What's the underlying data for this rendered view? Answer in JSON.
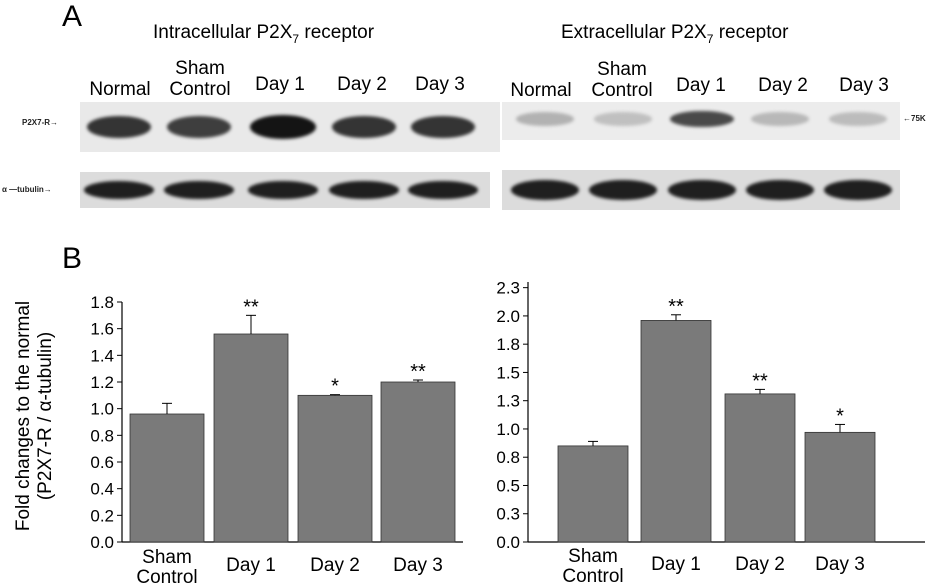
{
  "panel_a_letter": "A",
  "panel_b_letter": "B",
  "blots": {
    "left": {
      "title_main": "Intracellular P2X",
      "title_sub": "7",
      "title_tail": " receptor",
      "lanes": [
        {
          "line1": "Normal",
          "line2": ""
        },
        {
          "line1": "Sham",
          "line2": "Control"
        },
        {
          "line1": "Day 1",
          "line2": ""
        },
        {
          "line1": "Day 2",
          "line2": ""
        },
        {
          "line1": "Day 3",
          "line2": ""
        }
      ],
      "row1_label": "P2X7-R→",
      "row2_label": "α —tubulin→",
      "p2x7_intensity": [
        0.85,
        0.8,
        1.0,
        0.85,
        0.85
      ]
    },
    "right": {
      "title_main": "Extracellular P2X",
      "title_sub": "7",
      "title_tail": " receptor",
      "lanes": [
        {
          "line1": "Normal",
          "line2": ""
        },
        {
          "line1": "Sham",
          "line2": "Control"
        },
        {
          "line1": "Day 1",
          "line2": ""
        },
        {
          "line1": "Day 2",
          "line2": ""
        },
        {
          "line1": "Day 3",
          "line2": ""
        }
      ],
      "marker_label": "←75K",
      "p2x7_intensity": [
        0.25,
        0.18,
        0.75,
        0.22,
        0.2
      ]
    }
  },
  "y_axis_label_line1": "Fold changes to the normal",
  "y_axis_label_line2": "(P2X7-R / α-tubulin)",
  "colors": {
    "bar": "#7a7a7a",
    "band": "#1a1a1a",
    "blot_bg": "#e9e9e9"
  },
  "chart_data": [
    {
      "type": "bar",
      "categories": [
        [
          "Sham",
          "Control"
        ],
        [
          "Day 1"
        ],
        [
          "Day 2"
        ],
        [
          "Day 3"
        ]
      ],
      "values": [
        0.96,
        1.56,
        1.1,
        1.2
      ],
      "errors": [
        0.08,
        0.14,
        0.005,
        0.015
      ],
      "significance": [
        "",
        "**",
        "*",
        "**"
      ],
      "ylim": [
        0,
        1.8
      ],
      "yticks": [
        "0.0",
        "0.2",
        "0.4",
        "0.6",
        "0.8",
        "1.0",
        "1.2",
        "1.4",
        "1.6",
        "1.8"
      ],
      "ytick_values": [
        0,
        0.2,
        0.4,
        0.6,
        0.8,
        1.0,
        1.2,
        1.4,
        1.6,
        1.8
      ]
    },
    {
      "type": "bar",
      "categories": [
        [
          "Sham",
          "Control"
        ],
        [
          "Day 1"
        ],
        [
          "Day 2"
        ],
        [
          "Day 3"
        ]
      ],
      "values": [
        0.85,
        1.96,
        1.31,
        0.97
      ],
      "errors": [
        0.04,
        0.05,
        0.04,
        0.07
      ],
      "significance": [
        "",
        "**",
        "**",
        "*"
      ],
      "ylim": [
        0,
        2.3
      ],
      "yticks": [
        "0.0",
        "0.3",
        "0.5",
        "0.8",
        "1.0",
        "1.3",
        "1.5",
        "1.8",
        "2.0",
        "2.3"
      ],
      "ytick_values": [
        0,
        0.25,
        0.5,
        0.75,
        1.0,
        1.25,
        1.5,
        1.75,
        2.0,
        2.25
      ]
    }
  ]
}
